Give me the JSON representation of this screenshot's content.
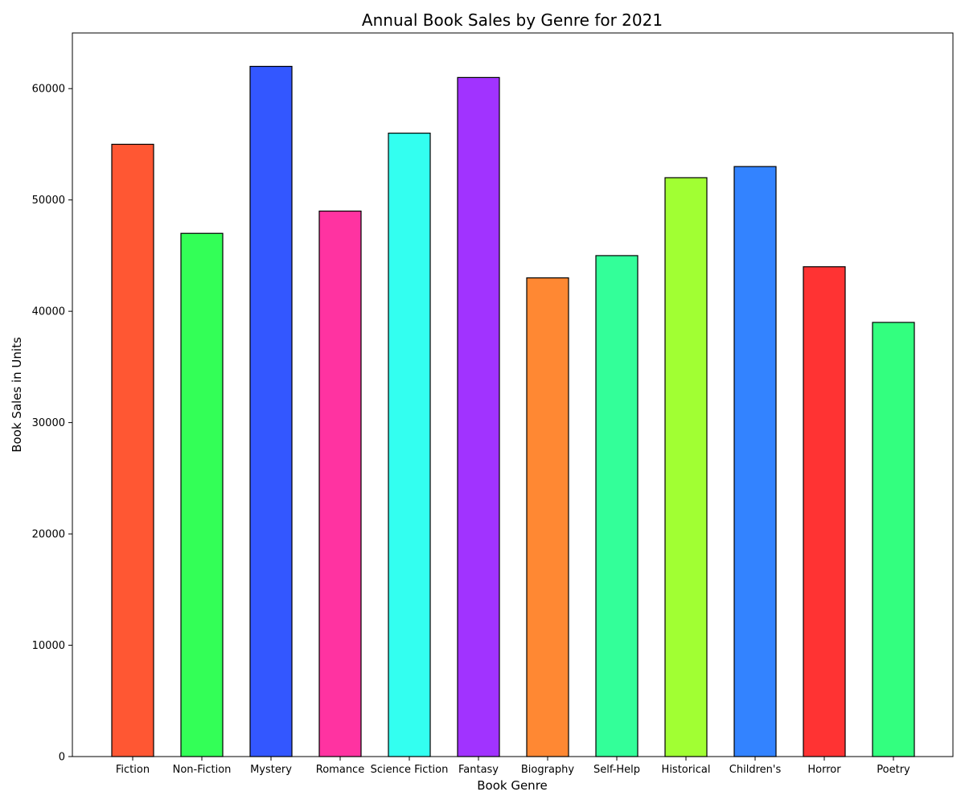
{
  "chart_data": {
    "type": "bar",
    "title": "Annual Book Sales by Genre for 2021",
    "xlabel": "Book Genre",
    "ylabel": "Book Sales in Units",
    "categories": [
      "Fiction",
      "Non-Fiction",
      "Mystery",
      "Romance",
      "Science Fiction",
      "Fantasy",
      "Biography",
      "Self-Help",
      "Historical",
      "Children's",
      "Horror",
      "Poetry"
    ],
    "values": [
      55000,
      47000,
      62000,
      49000,
      56000,
      61000,
      43000,
      45000,
      52000,
      53000,
      44000,
      39000
    ],
    "colors": [
      "#ff5733",
      "#33ff57",
      "#3357ff",
      "#ff33a1",
      "#33fff0",
      "#a133ff",
      "#ff8833",
      "#33ff99",
      "#a1ff33",
      "#3383ff",
      "#ff3333",
      "#33ff7f"
    ],
    "edge_color": "#000000",
    "ylim": [
      0,
      65000
    ],
    "yticks": [
      0,
      10000,
      20000,
      30000,
      40000,
      50000,
      60000
    ],
    "grid": false,
    "legend": "none"
  }
}
